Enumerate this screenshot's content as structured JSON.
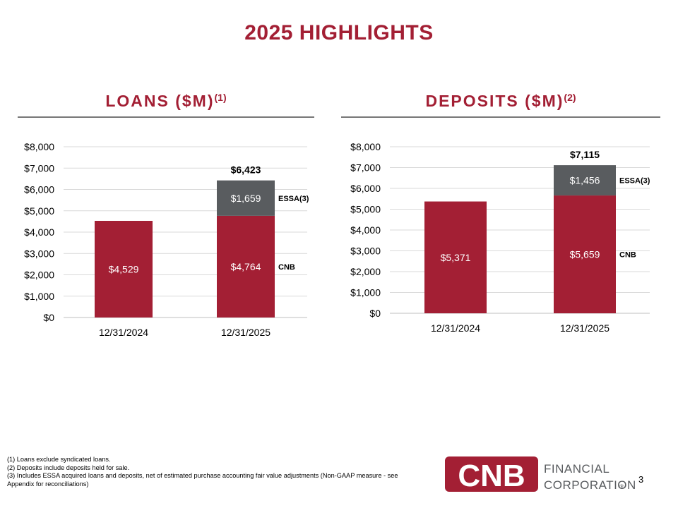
{
  "slide_title": "2025 HIGHLIGHTS",
  "colors": {
    "cnb": "#a31f34",
    "essa": "#595c5f",
    "grid": "#d9d9d9",
    "accent": "#a31f34"
  },
  "chart_data": [
    {
      "type": "bar",
      "stacked": true,
      "title": "LOANS ($M)",
      "title_sup": "(1)",
      "categories": [
        "12/31/2024",
        "12/31/2025"
      ],
      "series": [
        {
          "name": "CNB",
          "values": [
            4529,
            4764
          ],
          "labels": [
            "$4,529",
            "$4,764"
          ]
        },
        {
          "name": "ESSA(3)",
          "values": [
            null,
            1659
          ],
          "labels": [
            "",
            "$1,659"
          ]
        }
      ],
      "totals": [
        "",
        "$6,423"
      ],
      "ylim": [
        0,
        8000
      ],
      "yticks": [
        "$0",
        "$1,000",
        "$2,000",
        "$3,000",
        "$4,000",
        "$5,000",
        "$6,000",
        "$7,000",
        "$8,000"
      ],
      "grid": true,
      "legend": "right"
    },
    {
      "type": "bar",
      "stacked": true,
      "title": "DEPOSITS ($M)",
      "title_sup": "(2)",
      "categories": [
        "12/31/2024",
        "12/31/2025"
      ],
      "series": [
        {
          "name": "CNB",
          "values": [
            5371,
            5659
          ],
          "labels": [
            "$5,371",
            "$5,659"
          ]
        },
        {
          "name": "ESSA(3)",
          "values": [
            null,
            1456
          ],
          "labels": [
            "",
            "$1,456"
          ]
        }
      ],
      "totals": [
        "",
        "$7,115"
      ],
      "ylim": [
        0,
        8000
      ],
      "yticks": [
        "$0",
        "$1,000",
        "$2,000",
        "$3,000",
        "$4,000",
        "$5,000",
        "$6,000",
        "$7,000",
        "$8,000"
      ],
      "grid": true,
      "legend": "right"
    }
  ],
  "footnotes": [
    "(1) Loans exclude syndicated loans.",
    "(2) Deposits include deposits held for sale.",
    "(3) Includes ESSA acquired loans and deposits, net of estimated purchase accounting fair value adjustments (Non-GAAP measure - see Appendix for reconciliations)"
  ],
  "logo": {
    "mark": "CNB",
    "line1": "FINANCIAL",
    "line2": "CORPORATION",
    "registered": "®"
  },
  "page_number": "3"
}
